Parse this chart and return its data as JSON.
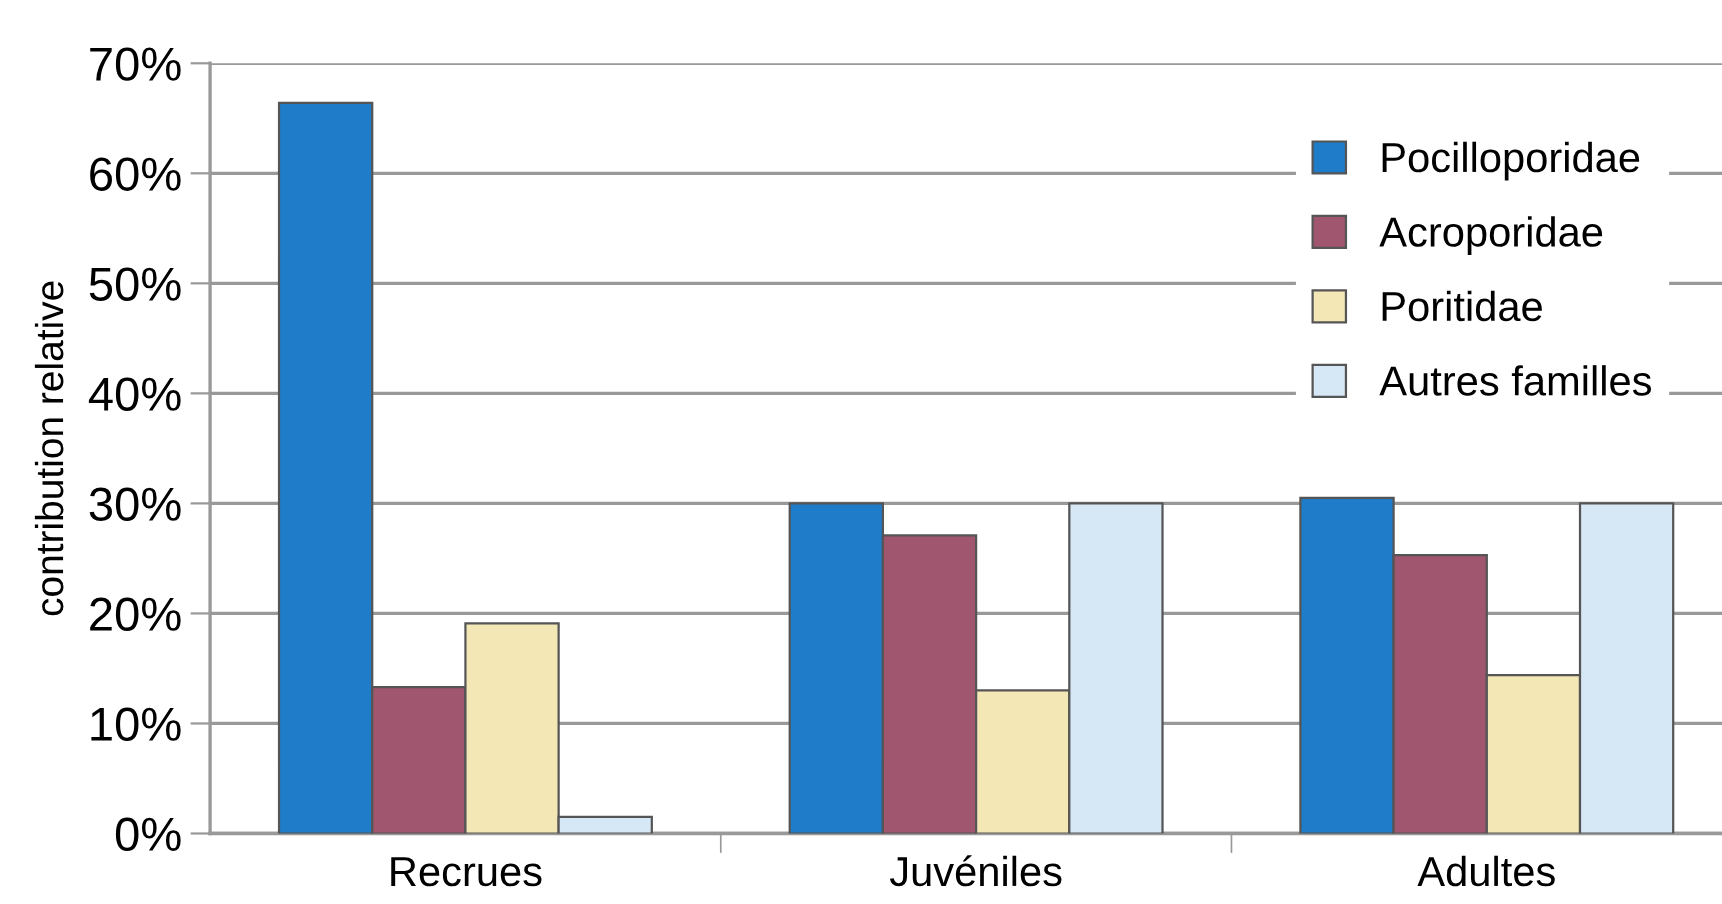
{
  "chart_data": {
    "type": "bar",
    "ylabel": "contribution relative",
    "categories": [
      "Recrues",
      "Juvéniles",
      "Adultes"
    ],
    "series": [
      {
        "name": "Pocilloporidae",
        "color": "#1f7cc8",
        "values": [
          66.4,
          30,
          30.5
        ]
      },
      {
        "name": "Acroporidae",
        "color": "#a0566e",
        "values": [
          13.3,
          27.1,
          25.3
        ]
      },
      {
        "name": "Poritidae",
        "color": "#f3e7b6",
        "values": [
          19.1,
          13,
          14.4
        ]
      },
      {
        "name": "Autres familles",
        "color": "#d6e7f6",
        "values": [
          1.5,
          30,
          30
        ]
      }
    ],
    "ylim": [
      0,
      70
    ],
    "yticks": [
      {
        "value": 0,
        "label": "0%"
      },
      {
        "value": 10,
        "label": "10%"
      },
      {
        "value": 20,
        "label": "20%"
      },
      {
        "value": 30,
        "label": "30%"
      },
      {
        "value": 40,
        "label": "40%"
      },
      {
        "value": 50,
        "label": "50%"
      },
      {
        "value": 60,
        "label": "60%"
      },
      {
        "value": 70,
        "label": "70%"
      }
    ],
    "grid": "y",
    "legend": "top right"
  }
}
